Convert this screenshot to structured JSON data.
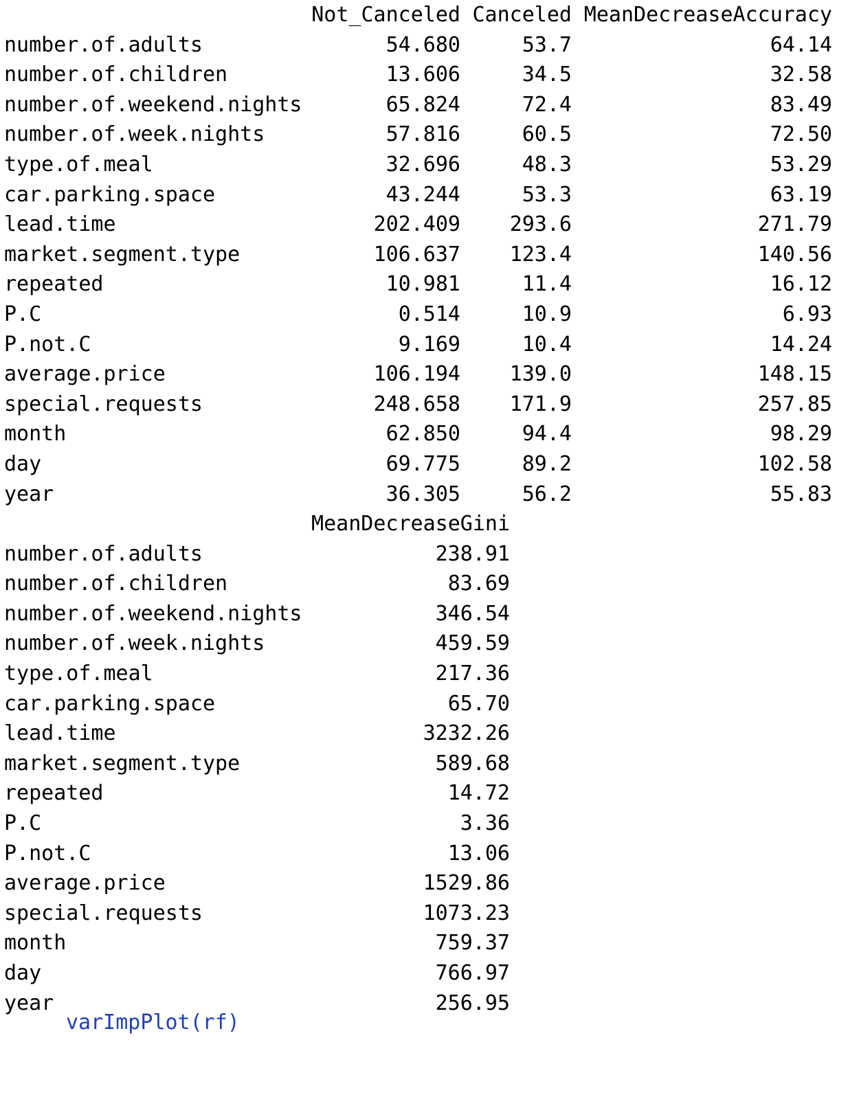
{
  "block1": {
    "headers": [
      "Not_Canceled",
      "Canceled",
      "MeanDecreaseAccuracy"
    ],
    "rows": [
      [
        "number.of.adults",
        "54.680",
        "53.7",
        "64.14"
      ],
      [
        "number.of.children",
        "13.606",
        "34.5",
        "32.58"
      ],
      [
        "number.of.weekend.nights",
        "65.824",
        "72.4",
        "83.49"
      ],
      [
        "number.of.week.nights",
        "57.816",
        "60.5",
        "72.50"
      ],
      [
        "type.of.meal",
        "32.696",
        "48.3",
        "53.29"
      ],
      [
        "car.parking.space",
        "43.244",
        "53.3",
        "63.19"
      ],
      [
        "lead.time",
        "202.409",
        "293.6",
        "271.79"
      ],
      [
        "market.segment.type",
        "106.637",
        "123.4",
        "140.56"
      ],
      [
        "repeated",
        "10.981",
        "11.4",
        "16.12"
      ],
      [
        "P.C",
        "0.514",
        "10.9",
        "6.93"
      ],
      [
        "P.not.C",
        "9.169",
        "10.4",
        "14.24"
      ],
      [
        "average.price",
        "106.194",
        "139.0",
        "148.15"
      ],
      [
        "special.requests",
        "248.658",
        "171.9",
        "257.85"
      ],
      [
        "month",
        "62.850",
        "94.4",
        "98.29"
      ],
      [
        "day",
        "69.775",
        "89.2",
        "102.58"
      ],
      [
        "year",
        "36.305",
        "56.2",
        "55.83"
      ]
    ]
  },
  "block2": {
    "header": "MeanDecreaseGini",
    "rows": [
      [
        "number.of.adults",
        "238.91"
      ],
      [
        "number.of.children",
        "83.69"
      ],
      [
        "number.of.weekend.nights",
        "346.54"
      ],
      [
        "number.of.week.nights",
        "459.59"
      ],
      [
        "type.of.meal",
        "217.36"
      ],
      [
        "car.parking.space",
        "65.70"
      ],
      [
        "lead.time",
        "3232.26"
      ],
      [
        "market.segment.type",
        "589.68"
      ],
      [
        "repeated",
        "14.72"
      ],
      [
        "P.C",
        "3.36"
      ],
      [
        "P.not.C",
        "13.06"
      ],
      [
        "average.price",
        "1529.86"
      ],
      [
        "special.requests",
        "1073.23"
      ],
      [
        "month",
        "759.37"
      ],
      [
        "day",
        "766.97"
      ],
      [
        "year",
        "256.95"
      ]
    ]
  },
  "cutoff_text": "varImpPlot(rf)"
}
